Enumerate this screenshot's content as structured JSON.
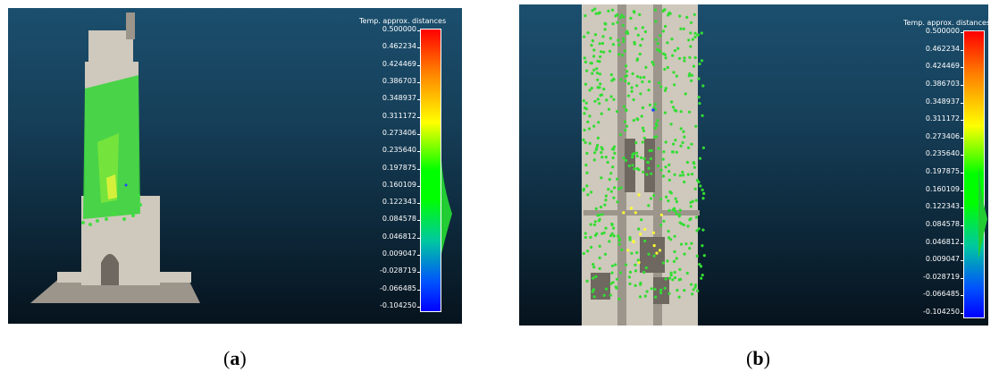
{
  "panels": [
    {
      "id": "a",
      "colorbar_title": "Temp. approx. distances",
      "ticks": [
        "0.500000",
        "0.462234",
        "0.424469",
        "0.386703",
        "0.348937",
        "0.311172",
        "0.273406",
        "0.235640",
        "0.197875",
        "0.160109",
        "0.122343",
        "0.084578",
        "0.046812",
        "0.009047",
        "-0.028719",
        "-0.066485",
        "-0.104250"
      ],
      "caption_letter": "a"
    },
    {
      "id": "b",
      "colorbar_title": "Temp. approx. distances",
      "ticks": [
        "0.500000",
        "0.462234",
        "0.424469",
        "0.386703",
        "0.348937",
        "0.311172",
        "0.273406",
        "0.235640",
        "0.197875",
        "0.160109",
        "0.122343",
        "0.084578",
        "0.046812",
        "0.009047",
        "-0.028719",
        "-0.066485",
        "-0.104250"
      ],
      "caption_letter": "b"
    }
  ],
  "colors": {
    "background_top": "#1b4f6e",
    "background_bottom": "#06131d",
    "points": "#33dd33",
    "highlight": "#ffff33"
  }
}
